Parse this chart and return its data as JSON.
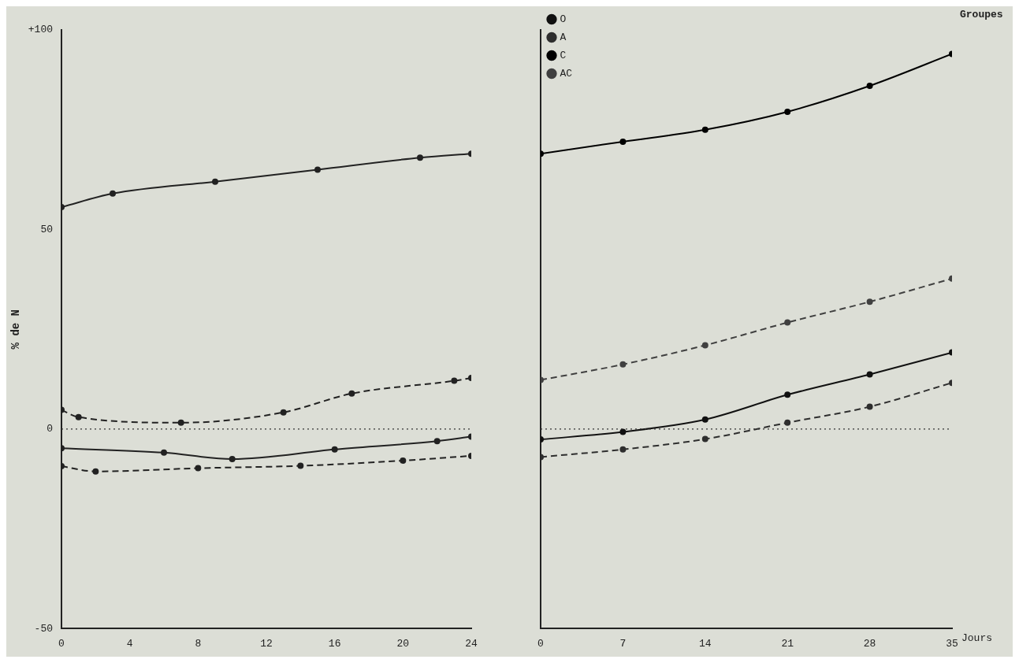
{
  "chart_data": [
    {
      "type": "line",
      "ylabel": "% de N",
      "xlim": [
        0,
        24
      ],
      "xticks": [
        0,
        4,
        8,
        12,
        16,
        20,
        24
      ],
      "ylim": [
        -50,
        100
      ],
      "yticks": [
        -50,
        0,
        50,
        {
          "value": 100,
          "label": "+100"
        }
      ],
      "grid": false,
      "legend": false,
      "marker": "circle",
      "ref_lines": [
        {
          "axis": "y",
          "value": 0,
          "line_style": "dotted",
          "color": "#333333"
        }
      ],
      "series": [
        {
          "color": "#222222",
          "line_style": "solid",
          "x": [
            0,
            6,
            10,
            16,
            22,
            24
          ],
          "values": [
            -4.8,
            -5.9,
            -7.5,
            -5.1,
            -3.0,
            -1.9
          ]
        },
        {
          "color": "#222222",
          "line_style": "dashed",
          "x": [
            0,
            2,
            8,
            14,
            20,
            24
          ],
          "values": [
            -9.3,
            -10.6,
            -9.8,
            -9.2,
            -7.9,
            -6.7
          ]
        },
        {
          "color": "#222222",
          "line_style": "solid",
          "x": [
            0,
            3,
            9,
            15,
            21,
            24
          ],
          "values": [
            55.6,
            59,
            62,
            65,
            68,
            69
          ]
        },
        {
          "color": "#222222",
          "line_style": "dashed",
          "x": [
            0,
            1,
            7,
            13,
            17,
            23,
            24
          ],
          "values": [
            4.8,
            3.0,
            1.6,
            4.2,
            8.9,
            12.1,
            12.8
          ]
        }
      ]
    },
    {
      "type": "line",
      "xlabel": "Jours",
      "legend_title": "Groupes",
      "xlim": [
        0,
        35
      ],
      "xticks": [
        0,
        7,
        14,
        21,
        28,
        35
      ],
      "ylim": [
        -50,
        100
      ],
      "tick_labels": "x",
      "grid": false,
      "legend": "top left",
      "marker": "circle",
      "ref_lines": [
        {
          "axis": "y",
          "value": 0,
          "line_style": "dotted",
          "color": "#333333"
        }
      ],
      "series": [
        {
          "name": "O",
          "color": "#111111",
          "line_style": "solid",
          "x": [
            0,
            7,
            14,
            21,
            28,
            35
          ],
          "values": [
            -2.6,
            -0.7,
            2.4,
            8.6,
            13.7,
            19.2
          ]
        },
        {
          "name": "A",
          "color": "#2e2e2e",
          "line_style": "dashed",
          "x": [
            0,
            7,
            14,
            21,
            28,
            35
          ],
          "values": [
            -7.0,
            -5.1,
            -2.5,
            1.6,
            5.6,
            11.6
          ]
        },
        {
          "name": "C",
          "color": "#000000",
          "line_style": "solid",
          "x": [
            0,
            7,
            14,
            21,
            28,
            35
          ],
          "values": [
            69,
            72,
            75,
            79.5,
            86,
            94
          ]
        },
        {
          "name": "AC",
          "color": "#404040",
          "line_style": "dashed",
          "x": [
            0,
            7,
            14,
            21,
            28,
            35
          ],
          "values": [
            12.3,
            16.2,
            21,
            26.7,
            31.9,
            37.7
          ]
        }
      ]
    }
  ]
}
